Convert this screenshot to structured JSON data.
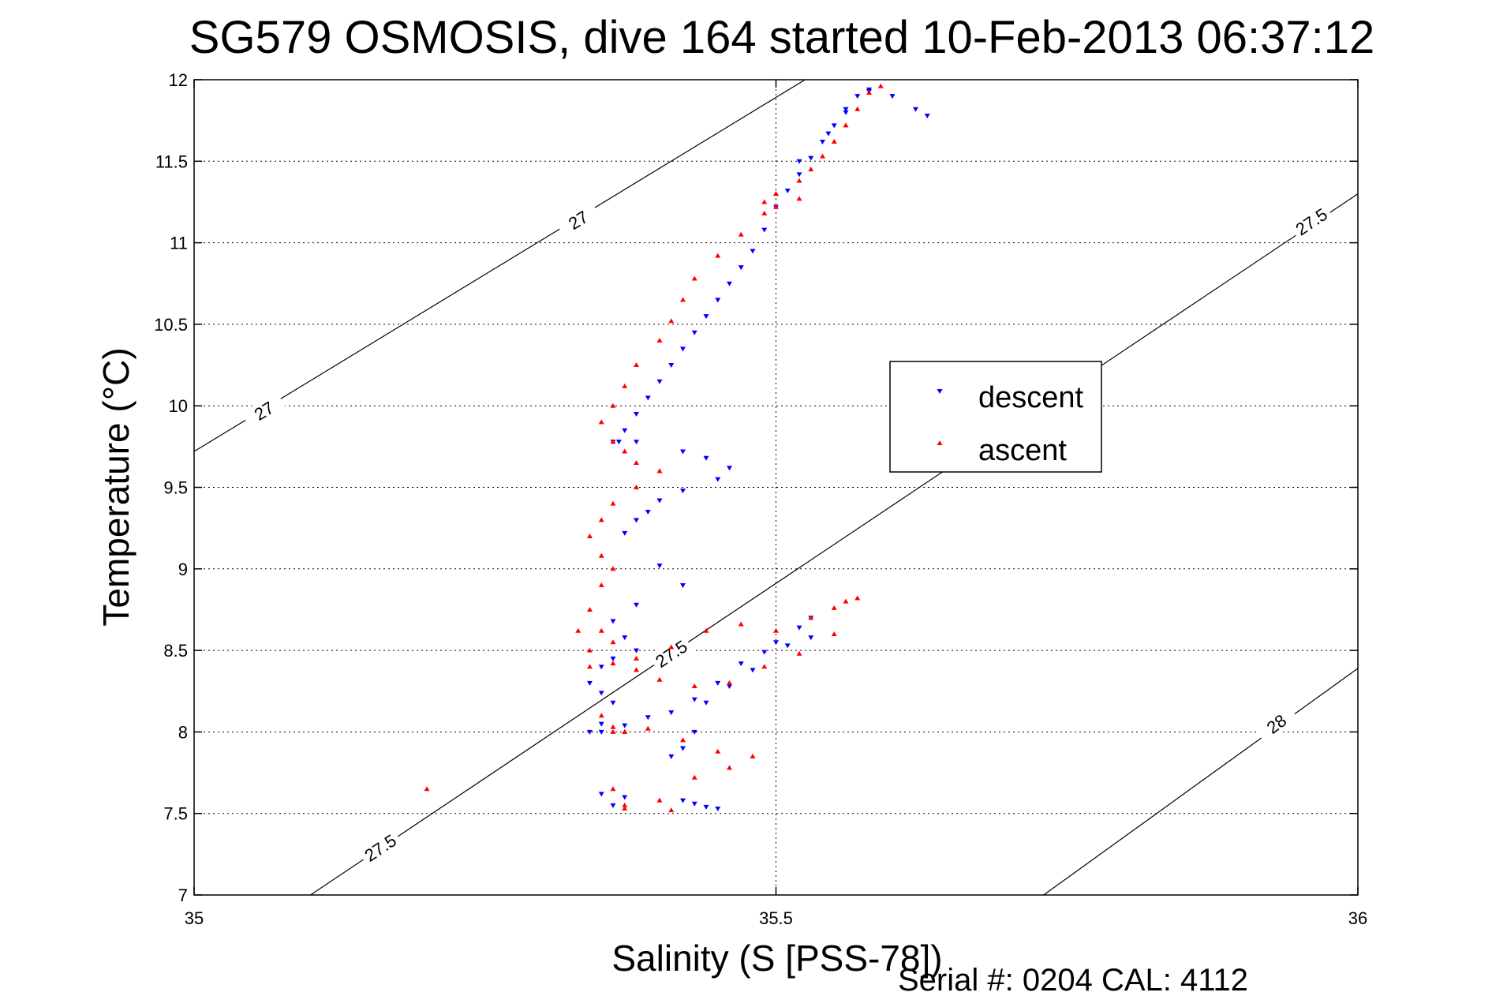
{
  "chart_data": {
    "type": "scatter",
    "title": "SG579 OSMOSIS, dive 164 started 10-Feb-2013 06:37:12",
    "xlabel": "Salinity (S [PSS-78])",
    "ylabel": "Temperature (°C)",
    "xlim": [
      35,
      36
    ],
    "ylim": [
      7,
      12
    ],
    "xticks": [
      35,
      35.5,
      36
    ],
    "xtick_labels": [
      "35",
      "35.5",
      "36"
    ],
    "yticks": [
      7,
      7.5,
      8,
      8.5,
      9,
      9.5,
      10,
      10.5,
      11,
      11.5,
      12
    ],
    "ytick_labels": [
      "7",
      "7.5",
      "8",
      "8.5",
      "9",
      "9.5",
      "10",
      "10.5",
      "11",
      "11.5",
      "12"
    ],
    "grid": true,
    "legend": {
      "placement": "right"
    },
    "footer": "Serial #: 0204  CAL: 4112",
    "contours": [
      {
        "label": "27",
        "points": [
          [
            35,
            9.72
          ],
          [
            35.525,
            12
          ]
        ],
        "labels_at": [
          [
            35.06,
            9.97
          ],
          [
            35.33,
            11.14
          ]
        ]
      },
      {
        "label": "27.5",
        "points": [
          [
            35.1,
            7
          ],
          [
            36,
            11.3
          ]
        ],
        "labels_at": [
          [
            35.16,
            7.29
          ],
          [
            35.41,
            8.48
          ],
          [
            35.96,
            11.13
          ]
        ]
      },
      {
        "label": "28",
        "points": [
          [
            35.73,
            7
          ],
          [
            36,
            8.39
          ]
        ],
        "labels_at": [
          [
            35.93,
            8.05
          ]
        ]
      }
    ],
    "series": [
      {
        "name": "descent",
        "marker": "triangle-down",
        "color": "#0000ff",
        "x": [
          35.58,
          35.57,
          35.56,
          35.55,
          35.54,
          35.53,
          35.52,
          35.51,
          35.5,
          35.49,
          35.48,
          35.47,
          35.46,
          35.45,
          35.44,
          35.43,
          35.42,
          35.41,
          35.4,
          35.39,
          35.38,
          35.37,
          35.36,
          35.365,
          35.38,
          35.42,
          35.44,
          35.46,
          35.45,
          35.42,
          35.4,
          35.39,
          35.38,
          35.37,
          35.4,
          35.42,
          35.38,
          35.36,
          35.37,
          35.38,
          35.36,
          35.35,
          35.34,
          35.35,
          35.36,
          35.35,
          35.34,
          35.35,
          35.37,
          35.39,
          35.41,
          35.43,
          35.45,
          35.47,
          35.49,
          35.51,
          35.53,
          35.53,
          35.52,
          35.5,
          35.48,
          35.46,
          35.44,
          35.43,
          35.42,
          35.41,
          35.37,
          35.36,
          35.35,
          35.42,
          35.43,
          35.44,
          35.45,
          35.63,
          35.62,
          35.6,
          35.58,
          35.56,
          35.545,
          35.52
        ],
        "y": [
          11.93,
          11.9,
          11.8,
          11.72,
          11.62,
          11.52,
          11.42,
          11.32,
          11.22,
          11.08,
          10.95,
          10.85,
          10.75,
          10.65,
          10.55,
          10.45,
          10.35,
          10.25,
          10.15,
          10.05,
          9.95,
          9.85,
          9.78,
          9.78,
          9.78,
          9.72,
          9.68,
          9.62,
          9.55,
          9.48,
          9.42,
          9.35,
          9.3,
          9.22,
          9.02,
          8.9,
          8.78,
          8.68,
          8.58,
          8.5,
          8.45,
          8.4,
          8.3,
          8.24,
          8.18,
          8.05,
          8.0,
          8.0,
          8.04,
          8.09,
          8.12,
          8.2,
          8.3,
          8.42,
          8.49,
          8.53,
          8.58,
          8.7,
          8.64,
          8.55,
          8.38,
          8.28,
          8.18,
          8.0,
          7.9,
          7.85,
          7.6,
          7.55,
          7.62,
          7.58,
          7.56,
          7.54,
          7.53,
          11.78,
          11.82,
          11.9,
          11.94,
          11.82,
          11.67,
          11.5
        ],
        "n": 80
      },
      {
        "name": "ascent",
        "marker": "triangle-up",
        "color": "#ff0000",
        "x": [
          35.59,
          35.58,
          35.57,
          35.56,
          35.55,
          35.54,
          35.53,
          35.52,
          35.5,
          35.49,
          35.5,
          35.52,
          35.5,
          35.49,
          35.47,
          35.45,
          35.43,
          35.42,
          35.41,
          35.4,
          35.38,
          35.37,
          35.36,
          35.35,
          35.36,
          35.37,
          35.38,
          35.4,
          35.38,
          35.36,
          35.35,
          35.34,
          35.35,
          35.36,
          35.35,
          35.34,
          35.33,
          35.34,
          35.36,
          35.38,
          35.41,
          35.44,
          35.47,
          35.5,
          35.53,
          35.55,
          35.56,
          35.57,
          35.55,
          35.52,
          35.49,
          35.46,
          35.43,
          35.4,
          35.38,
          35.36,
          35.35,
          35.34,
          35.35,
          35.37,
          35.39,
          35.42,
          35.45,
          35.48,
          35.46,
          35.43,
          35.4,
          35.37,
          35.36,
          35.37,
          35.41,
          35.37,
          35.36,
          35.36,
          35.2
        ],
        "y": [
          11.96,
          11.92,
          11.82,
          11.72,
          11.62,
          11.53,
          11.45,
          11.38,
          11.3,
          11.25,
          11.22,
          11.27,
          11.3,
          11.18,
          11.05,
          10.92,
          10.78,
          10.65,
          10.52,
          10.4,
          10.25,
          10.12,
          10.0,
          9.9,
          9.78,
          9.72,
          9.65,
          9.6,
          9.5,
          9.4,
          9.3,
          9.2,
          9.08,
          9.0,
          8.9,
          8.75,
          8.62,
          8.5,
          8.42,
          8.38,
          8.52,
          8.62,
          8.66,
          8.62,
          8.7,
          8.76,
          8.8,
          8.82,
          8.6,
          8.48,
          8.4,
          8.3,
          8.28,
          8.32,
          8.45,
          8.55,
          8.62,
          8.4,
          8.1,
          8.0,
          8.02,
          7.95,
          7.88,
          7.85,
          7.78,
          7.72,
          7.58,
          7.55,
          7.65,
          7.53,
          7.52,
          8.0,
          8.03,
          8.0,
          7.65
        ],
        "n": 75
      }
    ]
  }
}
